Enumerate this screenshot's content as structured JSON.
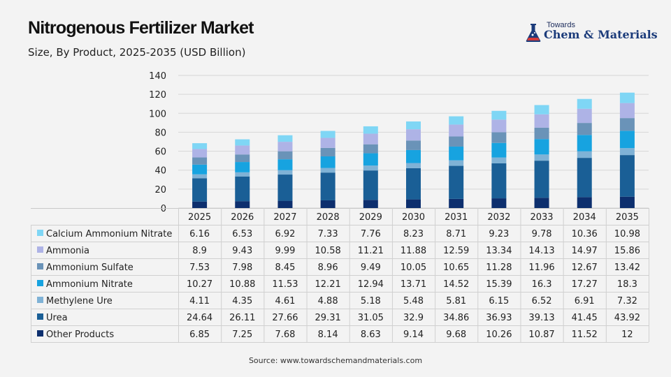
{
  "header": {
    "title": "Nitrogenous Fertilizer Market",
    "subtitle": "Size, By Product, 2025-2035 (USD Billion)"
  },
  "logo": {
    "small": "Towards",
    "big": "Chem & Materials",
    "icon": "flask-icon",
    "color": "#1b3b7a"
  },
  "footer": {
    "source": "Source: www.towardschemandmaterials.com"
  },
  "chart_data": {
    "type": "bar",
    "stacked": true,
    "categories": [
      "2025",
      "2026",
      "2027",
      "2028",
      "2029",
      "2030",
      "2031",
      "2032",
      "2033",
      "2034",
      "2035"
    ],
    "ylim": [
      0,
      140
    ],
    "yticks": [
      0,
      20,
      40,
      60,
      80,
      100,
      120,
      140
    ],
    "grid": true,
    "legend": "data-table-below",
    "series": [
      {
        "name": "Other Products",
        "color": "#0d2f6e",
        "values": [
          6.85,
          7.25,
          7.68,
          8.14,
          8.63,
          9.14,
          9.68,
          10.26,
          10.87,
          11.52,
          12
        ]
      },
      {
        "name": "Urea",
        "color": "#1a5f96",
        "values": [
          24.64,
          26.11,
          27.66,
          29.31,
          31.05,
          32.9,
          34.86,
          36.93,
          39.13,
          41.45,
          43.92
        ]
      },
      {
        "name": "Methylene Ure",
        "color": "#7fb2d6",
        "values": [
          4.11,
          4.35,
          4.61,
          4.88,
          5.18,
          5.48,
          5.81,
          6.15,
          6.52,
          6.91,
          7.32
        ]
      },
      {
        "name": "Ammonium Nitrate",
        "color": "#17a3e0",
        "values": [
          10.27,
          10.88,
          11.53,
          12.21,
          12.94,
          13.71,
          14.52,
          15.39,
          16.3,
          17.27,
          18.3
        ]
      },
      {
        "name": "Ammonium Sulfate",
        "color": "#6a93b8",
        "values": [
          7.53,
          7.98,
          8.45,
          8.96,
          9.49,
          10.05,
          10.65,
          11.28,
          11.96,
          12.67,
          13.42
        ]
      },
      {
        "name": "Ammonia",
        "color": "#aeb3e6",
        "values": [
          8.9,
          9.43,
          9.99,
          10.58,
          11.21,
          11.88,
          12.59,
          13.34,
          14.13,
          14.97,
          15.86
        ]
      },
      {
        "name": "Calcium Ammonium Nitrate",
        "color": "#7fd6f5",
        "values": [
          6.16,
          6.53,
          6.92,
          7.33,
          7.76,
          8.23,
          8.71,
          9.23,
          9.78,
          10.36,
          10.98
        ]
      }
    ],
    "table_order": [
      "Calcium Ammonium Nitrate",
      "Ammonia",
      "Ammonium Sulfate",
      "Ammonium Nitrate",
      "Methylene Ure",
      "Urea",
      "Other Products"
    ]
  }
}
